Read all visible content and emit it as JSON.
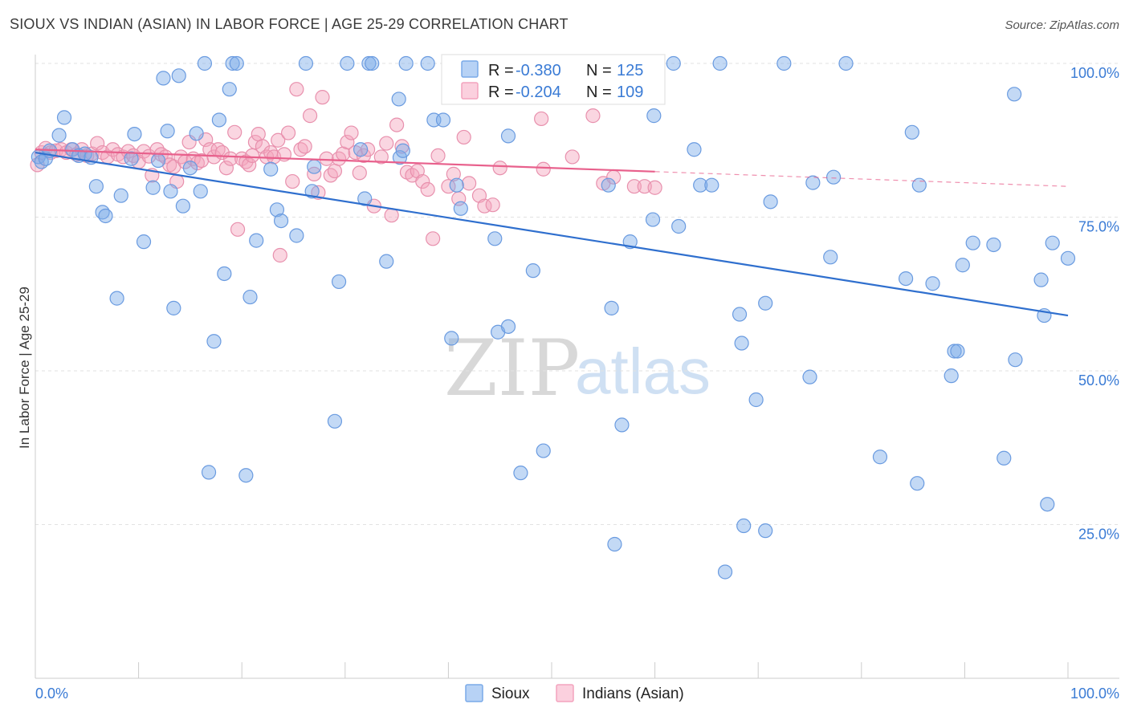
{
  "title": "SIOUX VS INDIAN (ASIAN) IN LABOR FORCE | AGE 25-29 CORRELATION CHART",
  "source": "Source: ZipAtlas.com",
  "watermark": {
    "part1": "ZIP",
    "part2": "atlas"
  },
  "colors": {
    "sioux": "#7aaae8",
    "sioux_line": "#2f6fce",
    "indian": "#f3a3bd",
    "indian_line": "#e8608c",
    "axis_label": "#3a7bd5"
  },
  "legend": {
    "rows": [
      {
        "r_label": "R = ",
        "r_value": "-0.380",
        "n_label": "N = ",
        "n_value": "125"
      },
      {
        "r_label": "R = ",
        "r_value": "-0.204",
        "n_label": "N = ",
        "n_value": "109"
      }
    ]
  },
  "bottom_legend": [
    "Sioux",
    "Indians (Asian)"
  ],
  "chart_data": {
    "type": "scatter",
    "title": "SIOUX VS INDIAN (ASIAN) IN LABOR FORCE | AGE 25-29 CORRELATION CHART",
    "xlabel": "",
    "ylabel": "In Labor Force | Age 25-29",
    "x_tick_labels": [
      "0.0%",
      "100.0%"
    ],
    "y_tick_labels": [
      "100.0%",
      "75.0%",
      "50.0%",
      "25.0%"
    ],
    "y_ticks": [
      100,
      75,
      50,
      25
    ],
    "xlim": [
      0,
      100
    ],
    "ylim": [
      0,
      102
    ],
    "grid": true,
    "legend_position": "top-center",
    "series": [
      {
        "name": "Sioux",
        "R": -0.38,
        "N": 125,
        "trend": {
          "x": [
            0,
            100
          ],
          "y": [
            85.5,
            59.0
          ],
          "solid_to": 100
        },
        "points": [
          [
            0.3,
            84.8
          ],
          [
            0.6,
            84.0
          ],
          [
            1.0,
            84.5
          ],
          [
            1.4,
            85.8
          ],
          [
            2.3,
            88.3
          ],
          [
            2.8,
            91.2
          ],
          [
            3.6,
            86.0
          ],
          [
            4.2,
            85.0
          ],
          [
            4.8,
            85.3
          ],
          [
            5.4,
            84.7
          ],
          [
            5.9,
            80.0
          ],
          [
            6.5,
            75.8
          ],
          [
            6.8,
            75.2
          ],
          [
            7.9,
            61.8
          ],
          [
            8.3,
            78.5
          ],
          [
            9.3,
            84.5
          ],
          [
            9.6,
            88.5
          ],
          [
            10.5,
            71.0
          ],
          [
            11.4,
            79.8
          ],
          [
            11.9,
            84.2
          ],
          [
            12.4,
            97.6
          ],
          [
            12.8,
            89.0
          ],
          [
            13.1,
            79.2
          ],
          [
            13.4,
            60.2
          ],
          [
            13.9,
            98.0
          ],
          [
            14.3,
            76.8
          ],
          [
            15.0,
            83.0
          ],
          [
            15.6,
            88.6
          ],
          [
            16.0,
            79.2
          ],
          [
            16.4,
            100.0
          ],
          [
            16.8,
            33.5
          ],
          [
            17.3,
            54.8
          ],
          [
            17.8,
            90.8
          ],
          [
            18.3,
            65.8
          ],
          [
            18.8,
            95.8
          ],
          [
            19.1,
            100.0
          ],
          [
            19.5,
            100.0
          ],
          [
            20.4,
            33.0
          ],
          [
            20.8,
            62.0
          ],
          [
            21.4,
            71.2
          ],
          [
            22.8,
            82.8
          ],
          [
            23.4,
            76.2
          ],
          [
            23.8,
            74.4
          ],
          [
            25.3,
            72.0
          ],
          [
            26.2,
            100.0
          ],
          [
            26.8,
            79.2
          ],
          [
            27.0,
            83.2
          ],
          [
            29.0,
            41.8
          ],
          [
            29.4,
            64.5
          ],
          [
            30.2,
            100.0
          ],
          [
            31.5,
            86.0
          ],
          [
            31.9,
            78.0
          ],
          [
            32.3,
            100.0
          ],
          [
            32.6,
            100.0
          ],
          [
            34.0,
            67.8
          ],
          [
            35.2,
            94.2
          ],
          [
            35.3,
            84.7
          ],
          [
            35.6,
            85.8
          ],
          [
            35.9,
            100.0
          ],
          [
            38.0,
            100.0
          ],
          [
            38.6,
            90.8
          ],
          [
            39.5,
            90.8
          ],
          [
            40.3,
            55.3
          ],
          [
            40.8,
            80.2
          ],
          [
            41.2,
            76.4
          ],
          [
            44.5,
            71.5
          ],
          [
            44.8,
            56.3
          ],
          [
            45.8,
            57.2
          ],
          [
            45.8,
            88.2
          ],
          [
            46.8,
            100.0
          ],
          [
            47.0,
            33.4
          ],
          [
            48.2,
            66.3
          ],
          [
            49.2,
            37.0
          ],
          [
            50.0,
            100.0
          ],
          [
            55.0,
            100.0
          ],
          [
            55.5,
            80.2
          ],
          [
            55.8,
            60.2
          ],
          [
            56.1,
            21.8
          ],
          [
            56.8,
            41.2
          ],
          [
            57.6,
            71.0
          ],
          [
            59.8,
            74.6
          ],
          [
            59.9,
            91.5
          ],
          [
            61.8,
            100.0
          ],
          [
            62.3,
            73.5
          ],
          [
            63.8,
            86.0
          ],
          [
            64.4,
            80.2
          ],
          [
            65.5,
            80.2
          ],
          [
            66.3,
            100.0
          ],
          [
            66.8,
            17.3
          ],
          [
            68.2,
            59.2
          ],
          [
            68.4,
            54.5
          ],
          [
            68.6,
            24.8
          ],
          [
            69.8,
            45.3
          ],
          [
            70.7,
            61.0
          ],
          [
            70.7,
            24.0
          ],
          [
            71.2,
            77.5
          ],
          [
            72.5,
            100.0
          ],
          [
            75.0,
            49.0
          ],
          [
            75.3,
            80.6
          ],
          [
            77.0,
            68.5
          ],
          [
            77.3,
            81.5
          ],
          [
            78.5,
            100.0
          ],
          [
            81.8,
            36.0
          ],
          [
            84.3,
            65.0
          ],
          [
            84.9,
            88.8
          ],
          [
            85.4,
            31.7
          ],
          [
            85.6,
            80.2
          ],
          [
            86.9,
            64.2
          ],
          [
            88.7,
            49.2
          ],
          [
            89.0,
            53.2
          ],
          [
            89.3,
            53.2
          ],
          [
            89.8,
            67.2
          ],
          [
            90.8,
            70.8
          ],
          [
            92.8,
            70.5
          ],
          [
            93.8,
            35.8
          ],
          [
            94.8,
            95.0
          ],
          [
            94.9,
            51.8
          ],
          [
            97.4,
            64.8
          ],
          [
            97.7,
            59.0
          ],
          [
            98.0,
            28.3
          ],
          [
            98.5,
            70.8
          ],
          [
            100.0,
            68.3
          ]
        ]
      },
      {
        "name": "Indians (Asian)",
        "R": -0.204,
        "N": 109,
        "trend": {
          "x": [
            0,
            100
          ],
          "y": [
            86.0,
            80.0
          ],
          "solid_to": 60
        },
        "points": [
          [
            0.2,
            83.5
          ],
          [
            0.6,
            85.5
          ],
          [
            1.0,
            86.2
          ],
          [
            1.5,
            85.5
          ],
          [
            2.0,
            85.8
          ],
          [
            2.5,
            86.0
          ],
          [
            3.0,
            85.5
          ],
          [
            3.5,
            86.0
          ],
          [
            4.0,
            85.2
          ],
          [
            4.5,
            86.0
          ],
          [
            5.0,
            85.0
          ],
          [
            5.5,
            85.3
          ],
          [
            6.0,
            87.0
          ],
          [
            6.5,
            85.5
          ],
          [
            7.0,
            84.8
          ],
          [
            7.5,
            86.0
          ],
          [
            8.0,
            85.2
          ],
          [
            8.5,
            84.8
          ],
          [
            9.0,
            85.7
          ],
          [
            9.5,
            85.0
          ],
          [
            10.0,
            84.0
          ],
          [
            10.5,
            85.7
          ],
          [
            11.0,
            84.9
          ],
          [
            11.3,
            81.8
          ],
          [
            11.8,
            86.0
          ],
          [
            12.2,
            85.2
          ],
          [
            12.6,
            84.8
          ],
          [
            13.0,
            83.5
          ],
          [
            13.4,
            83.2
          ],
          [
            13.7,
            80.8
          ],
          [
            14.1,
            84.8
          ],
          [
            14.5,
            84.0
          ],
          [
            14.9,
            87.2
          ],
          [
            15.3,
            84.5
          ],
          [
            15.7,
            83.8
          ],
          [
            16.1,
            84.2
          ],
          [
            16.5,
            87.6
          ],
          [
            16.9,
            86.0
          ],
          [
            17.3,
            84.8
          ],
          [
            17.7,
            86.0
          ],
          [
            18.1,
            85.5
          ],
          [
            18.5,
            83.0
          ],
          [
            18.9,
            84.5
          ],
          [
            19.3,
            88.8
          ],
          [
            19.6,
            73.0
          ],
          [
            20.0,
            84.5
          ],
          [
            20.4,
            84.0
          ],
          [
            20.7,
            83.5
          ],
          [
            21.0,
            85.0
          ],
          [
            21.3,
            87.2
          ],
          [
            21.6,
            88.5
          ],
          [
            22.0,
            86.5
          ],
          [
            22.4,
            84.8
          ],
          [
            22.8,
            85.5
          ],
          [
            23.1,
            84.8
          ],
          [
            23.5,
            87.5
          ],
          [
            23.7,
            68.8
          ],
          [
            24.1,
            85.2
          ],
          [
            24.5,
            88.7
          ],
          [
            24.9,
            80.8
          ],
          [
            25.3,
            95.8
          ],
          [
            25.7,
            86.0
          ],
          [
            26.1,
            86.5
          ],
          [
            26.6,
            91.5
          ],
          [
            27.0,
            82.0
          ],
          [
            27.4,
            79.0
          ],
          [
            27.8,
            94.5
          ],
          [
            28.2,
            84.5
          ],
          [
            28.6,
            81.8
          ],
          [
            29.0,
            82.5
          ],
          [
            29.4,
            84.5
          ],
          [
            29.8,
            85.3
          ],
          [
            30.2,
            87.2
          ],
          [
            30.6,
            88.7
          ],
          [
            31.0,
            85.5
          ],
          [
            31.4,
            82.2
          ],
          [
            31.8,
            85.0
          ],
          [
            32.2,
            86.0
          ],
          [
            32.8,
            76.8
          ],
          [
            33.5,
            84.8
          ],
          [
            34.0,
            87.0
          ],
          [
            34.5,
            75.3
          ],
          [
            35.0,
            90.0
          ],
          [
            35.5,
            86.5
          ],
          [
            36.0,
            82.3
          ],
          [
            36.5,
            81.8
          ],
          [
            37.0,
            82.5
          ],
          [
            37.5,
            80.8
          ],
          [
            38.0,
            79.5
          ],
          [
            38.5,
            71.5
          ],
          [
            39.0,
            85.0
          ],
          [
            40.0,
            80.0
          ],
          [
            40.5,
            82.0
          ],
          [
            41.0,
            78.0
          ],
          [
            41.5,
            88.0
          ],
          [
            42.0,
            80.5
          ],
          [
            43.0,
            78.5
          ],
          [
            43.5,
            76.8
          ],
          [
            44.3,
            77.0
          ],
          [
            45.0,
            83.0
          ],
          [
            49.0,
            91.0
          ],
          [
            54.0,
            91.5
          ],
          [
            55.0,
            80.5
          ],
          [
            56.0,
            81.5
          ],
          [
            58.0,
            80.0
          ],
          [
            59.0,
            80.0
          ],
          [
            60.0,
            79.8
          ],
          [
            49.2,
            82.8
          ],
          [
            52.0,
            84.8
          ]
        ]
      }
    ]
  }
}
